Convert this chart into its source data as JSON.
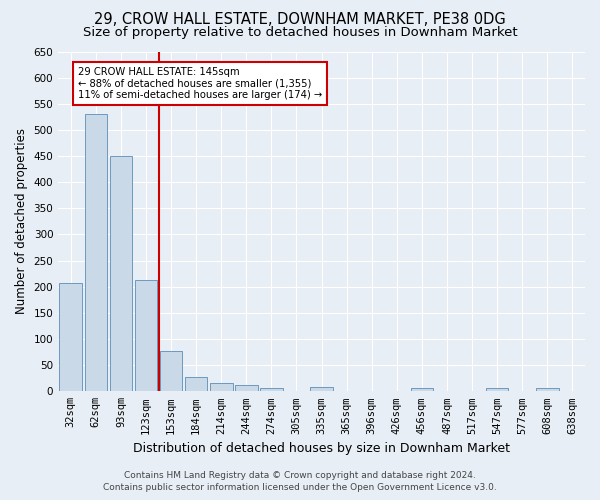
{
  "title": "29, CROW HALL ESTATE, DOWNHAM MARKET, PE38 0DG",
  "subtitle": "Size of property relative to detached houses in Downham Market",
  "xlabel": "Distribution of detached houses by size in Downham Market",
  "ylabel": "Number of detached properties",
  "bar_labels": [
    "32sqm",
    "62sqm",
    "93sqm",
    "123sqm",
    "153sqm",
    "184sqm",
    "214sqm",
    "244sqm",
    "274sqm",
    "305sqm",
    "335sqm",
    "365sqm",
    "396sqm",
    "426sqm",
    "456sqm",
    "487sqm",
    "517sqm",
    "547sqm",
    "577sqm",
    "608sqm",
    "638sqm"
  ],
  "bar_values": [
    208,
    530,
    450,
    212,
    77,
    27,
    15,
    12,
    7,
    0,
    8,
    0,
    0,
    0,
    6,
    0,
    0,
    6,
    0,
    6,
    0
  ],
  "bar_color": "#c9d9e8",
  "bar_edge_color": "#5b8db8",
  "vline_x_index": 4,
  "vline_color": "#cc0000",
  "annotation_line1": "29 CROW HALL ESTATE: 145sqm",
  "annotation_line2": "← 88% of detached houses are smaller (1,355)",
  "annotation_line3": "11% of semi-detached houses are larger (174) →",
  "annotation_box_color": "#cc0000",
  "ylim": [
    0,
    650
  ],
  "yticks": [
    0,
    50,
    100,
    150,
    200,
    250,
    300,
    350,
    400,
    450,
    500,
    550,
    600,
    650
  ],
  "footer_line1": "Contains HM Land Registry data © Crown copyright and database right 2024.",
  "footer_line2": "Contains public sector information licensed under the Open Government Licence v3.0.",
  "background_color": "#e8eef5",
  "plot_background_color": "#e8eef5",
  "title_fontsize": 10.5,
  "subtitle_fontsize": 9.5,
  "axis_label_fontsize": 8.5,
  "tick_fontsize": 7.5,
  "footer_fontsize": 6.5
}
